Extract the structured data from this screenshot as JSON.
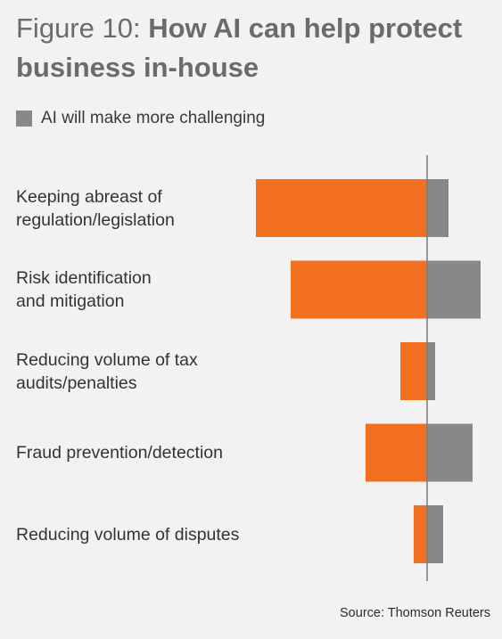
{
  "title": {
    "prefix": "Figure 10:",
    "main": "How AI can help protect business in-house"
  },
  "legend": {
    "label": "AI will make more challenging"
  },
  "colors": {
    "left": "#f37021",
    "right": "#888888",
    "axis": "#7a7a7a",
    "background": "#f2f2f2"
  },
  "chart_data": {
    "type": "bar",
    "orientation": "horizontal-diverging",
    "categories": [
      "Keeping abreast of regulation/legislation",
      "Risk identification and mitigation",
      "Reducing volume of tax audits/penalties",
      "Fraud prevention/detection",
      "Reducing volume of disputes"
    ],
    "category_lines": [
      [
        "Keeping abreast of",
        "regulation/legislation"
      ],
      [
        "Risk identification",
        "and mitigation"
      ],
      [
        "Reducing volume of tax",
        "audits/penalties"
      ],
      [
        "Fraud prevention/detection"
      ],
      [
        "Reducing volume of disputes"
      ]
    ],
    "series": [
      {
        "values": [
          64,
          51,
          10,
          23,
          5
        ]
      },
      {
        "name": "AI will make more challenging",
        "values": [
          8,
          20,
          3,
          17,
          6
        ]
      }
    ],
    "grid": false
  },
  "source": "Source: Thomson Reuters"
}
